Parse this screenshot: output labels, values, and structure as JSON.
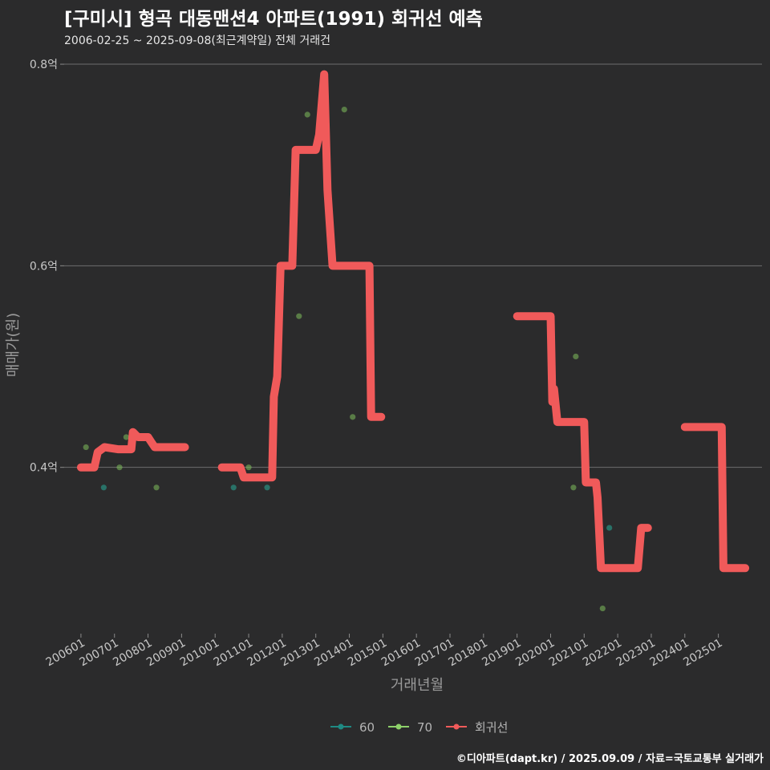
{
  "header": {
    "title": "[구미시] 형곡 대동맨션4 아파트(1991) 회귀선 예측",
    "subtitle": "2006-02-25 ~ 2025-09-08(최근계약일) 전체 거래건"
  },
  "footer": {
    "caption": "©디아파트(dapt.kr) / 2025.09.09 / 자료=국토교통부 실거래가"
  },
  "chart_data": {
    "type": "line",
    "title": "[구미시] 형곡 대동맨션4 아파트(1991) 회귀선 예측",
    "subtitle": "2006-02-25 ~ 2025-09-08(최근계약일) 전체 거래건",
    "xlabel": "거래년월",
    "ylabel": "매매가(원)",
    "xlim": [
      2005.5,
      2026.3
    ],
    "ylim": [
      0.235,
      0.808
    ],
    "y_ticks": [
      {
        "value": 0.4,
        "label": "0.4억"
      },
      {
        "value": 0.6,
        "label": "0.6억"
      },
      {
        "value": 0.8,
        "label": "0.8억"
      }
    ],
    "x_ticks": [
      {
        "value": 2006,
        "label": "200601"
      },
      {
        "value": 2007,
        "label": "200701"
      },
      {
        "value": 2008,
        "label": "200801"
      },
      {
        "value": 2009,
        "label": "200901"
      },
      {
        "value": 2010,
        "label": "201001"
      },
      {
        "value": 2011,
        "label": "201101"
      },
      {
        "value": 2012,
        "label": "201201"
      },
      {
        "value": 2013,
        "label": "201301"
      },
      {
        "value": 2014,
        "label": "201401"
      },
      {
        "value": 2015,
        "label": "201501"
      },
      {
        "value": 2016,
        "label": "201601"
      },
      {
        "value": 2017,
        "label": "201701"
      },
      {
        "value": 2018,
        "label": "201801"
      },
      {
        "value": 2019,
        "label": "201901"
      },
      {
        "value": 2020,
        "label": "202001"
      },
      {
        "value": 2021,
        "label": "202101"
      },
      {
        "value": 2022,
        "label": "202201"
      },
      {
        "value": 2023,
        "label": "202301"
      },
      {
        "value": 2024,
        "label": "202401"
      },
      {
        "value": 2025,
        "label": "202501"
      }
    ],
    "grid": true,
    "legend_position": "bottom",
    "legend": [
      {
        "name": "60",
        "color": "#1f8a83"
      },
      {
        "name": "70",
        "color": "#8ed16a"
      },
      {
        "name": "회귀선",
        "color": "#f05a5a"
      }
    ],
    "series": [
      {
        "name": "60",
        "kind": "scatter",
        "color": "#2a8b7c",
        "points": [
          [
            2006.68,
            0.38
          ],
          [
            2010.55,
            0.38
          ],
          [
            2011.55,
            0.38
          ],
          [
            2021.75,
            0.34
          ]
        ]
      },
      {
        "name": "70",
        "kind": "scatter",
        "color": "#7fbf5c",
        "points": [
          [
            2006.15,
            0.42
          ],
          [
            2007.15,
            0.4
          ],
          [
            2007.35,
            0.43
          ],
          [
            2008.25,
            0.38
          ],
          [
            2011.0,
            0.4
          ],
          [
            2012.5,
            0.55
          ],
          [
            2012.75,
            0.75
          ],
          [
            2013.85,
            0.755
          ],
          [
            2014.1,
            0.45
          ],
          [
            2020.75,
            0.51
          ],
          [
            2020.68,
            0.38
          ],
          [
            2021.55,
            0.26
          ]
        ]
      },
      {
        "name": "회귀선",
        "kind": "line",
        "color": "#f05a5a",
        "segments": [
          [
            [
              2006.0,
              0.4
            ],
            [
              2006.4,
              0.4
            ],
            [
              2006.5,
              0.415
            ],
            [
              2006.7,
              0.42
            ],
            [
              2007.1,
              0.418
            ],
            [
              2007.5,
              0.418
            ],
            [
              2007.55,
              0.435
            ],
            [
              2007.7,
              0.43
            ],
            [
              2008.0,
              0.43
            ],
            [
              2008.1,
              0.425
            ],
            [
              2008.2,
              0.42
            ],
            [
              2009.1,
              0.42
            ]
          ],
          [
            [
              2010.2,
              0.4
            ],
            [
              2010.75,
              0.4
            ],
            [
              2010.85,
              0.39
            ],
            [
              2011.7,
              0.39
            ],
            [
              2011.75,
              0.47
            ],
            [
              2011.85,
              0.49
            ],
            [
              2011.95,
              0.6
            ],
            [
              2012.3,
              0.6
            ],
            [
              2012.4,
              0.715
            ],
            [
              2013.0,
              0.715
            ],
            [
              2013.1,
              0.73
            ],
            [
              2013.25,
              0.79
            ],
            [
              2013.35,
              0.675
            ],
            [
              2013.5,
              0.6
            ],
            [
              2014.6,
              0.6
            ],
            [
              2014.65,
              0.45
            ],
            [
              2014.95,
              0.45
            ]
          ],
          [
            [
              2019.0,
              0.55
            ],
            [
              2020.0,
              0.55
            ],
            [
              2020.05,
              0.465
            ],
            [
              2020.1,
              0.478
            ],
            [
              2020.2,
              0.445
            ],
            [
              2021.0,
              0.445
            ],
            [
              2021.05,
              0.385
            ],
            [
              2021.35,
              0.385
            ],
            [
              2021.4,
              0.37
            ],
            [
              2021.5,
              0.3
            ],
            [
              2022.6,
              0.3
            ],
            [
              2022.7,
              0.34
            ],
            [
              2022.9,
              0.34
            ]
          ],
          [
            [
              2024.0,
              0.44
            ],
            [
              2025.1,
              0.44
            ],
            [
              2025.15,
              0.3
            ],
            [
              2025.8,
              0.3
            ]
          ]
        ]
      }
    ]
  }
}
